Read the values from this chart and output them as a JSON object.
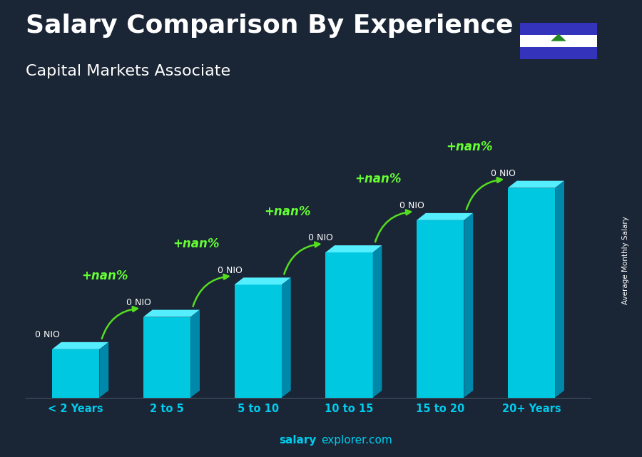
{
  "title": "Salary Comparison By Experience",
  "subtitle": "Capital Markets Associate",
  "categories": [
    "< 2 Years",
    "2 to 5",
    "5 to 10",
    "10 to 15",
    "15 to 20",
    "20+ Years"
  ],
  "values": [
    1.5,
    2.5,
    3.5,
    4.5,
    5.5,
    6.5
  ],
  "bar_labels": [
    "0 NIO",
    "0 NIO",
    "0 NIO",
    "0 NIO",
    "0 NIO",
    "0 NIO"
  ],
  "pct_labels": [
    "+nan%",
    "+nan%",
    "+nan%",
    "+nan%",
    "+nan%"
  ],
  "ylabel": "Average Monthly Salary",
  "footer_bold": "salary",
  "footer_normal": "explorer.com",
  "title_fontsize": 26,
  "subtitle_fontsize": 16,
  "bar_width": 0.52,
  "ylim": [
    0,
    8.5
  ],
  "front_color": "#00c8e0",
  "top_color": "#55eeff",
  "side_color": "#0088aa",
  "bg_color": "#1a2535",
  "text_color": "#ffffff",
  "pct_color": "#66ff33",
  "tick_color": "#00ccee",
  "footer_color": "#00ccee",
  "arrow_color": "#55dd22"
}
